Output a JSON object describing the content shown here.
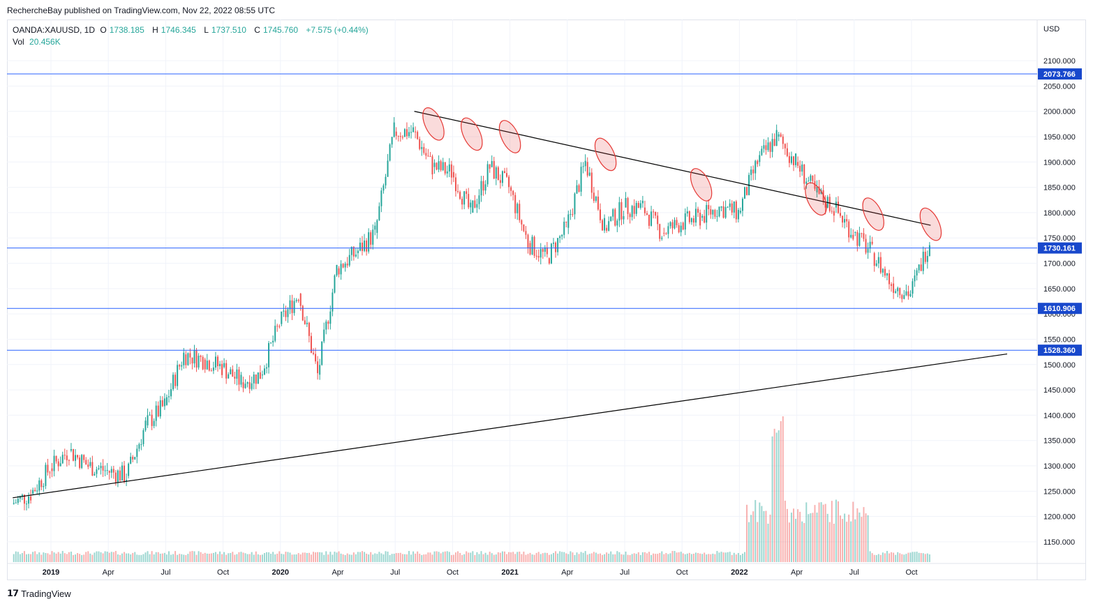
{
  "header": {
    "published": "RechercheBay published on TradingView.com, Nov 22, 2022 08:55 UTC"
  },
  "legend": {
    "symbol": "OANDA:XAUUSD, 1D",
    "open_label": "O",
    "open": "1738.185",
    "high_label": "H",
    "high": "1746.345",
    "low_label": "L",
    "low": "1737.510",
    "close_label": "C",
    "close": "1745.760",
    "change": "+7.575 (+0.44%)",
    "vol_label": "Vol",
    "vol": "20.456K"
  },
  "footer": {
    "brand": "TradingView",
    "logo": "tradingview-logo"
  },
  "colors": {
    "up": "#26a69a",
    "down": "#ef5350",
    "hline": "#2962ff",
    "tag": "#1848cc",
    "trend": "#000000",
    "ellipse": "#e53935"
  },
  "chart_data": {
    "type": "candlestick",
    "symbol": "OANDA:XAUUSD",
    "interval": "1D",
    "currency": "USD",
    "y_ticks": [
      1150,
      1200,
      1250,
      1300,
      1350,
      1400,
      1450,
      1500,
      1550,
      1600,
      1650,
      1700,
      1750,
      1800,
      1850,
      1900,
      1950,
      2000,
      2050,
      2100
    ],
    "y_tick_labels": [
      "1150.000",
      "1200.000",
      "1250.000",
      "1300.000",
      "1350.000",
      "1400.000",
      "1450.000",
      "1500.000",
      "1550.000",
      "1600.000",
      "1650.000",
      "1700.000",
      "1750.000",
      "1800.000",
      "1850.000",
      "1900.000",
      "1950.000",
      "2000.000",
      "2050.000",
      "2100.000"
    ],
    "x_ticks": [
      "2019",
      "Apr",
      "Jul",
      "Oct",
      "2020",
      "Apr",
      "Jul",
      "Oct",
      "2021",
      "Apr",
      "Jul",
      "Oct",
      "2022",
      "Apr",
      "Jul",
      "Oct"
    ],
    "x_tick_dates": [
      "2019-01",
      "2019-04",
      "2019-07",
      "2019-10",
      "2020-01",
      "2020-04",
      "2020-07",
      "2020-10",
      "2021-01",
      "2021-04",
      "2021-07",
      "2021-10",
      "2022-01",
      "2022-04",
      "2022-07",
      "2022-10"
    ],
    "horizontal_levels": [
      2073.766,
      1730.161,
      1610.906,
      1528.36
    ],
    "level_labels": [
      "2073.766",
      "1730.161",
      "1610.906",
      "1528.360"
    ],
    "trendlines": [
      {
        "from": [
          "2020-08",
          2000
        ],
        "to": [
          "2022-11",
          1775
        ]
      },
      {
        "from": [
          "2018-11",
          1237
        ],
        "to": [
          "2023-03",
          1521
        ]
      }
    ],
    "highlight_touches": [
      [
        "2020-09",
        1975
      ],
      [
        "2020-11",
        1955
      ],
      [
        "2021-01",
        1950
      ],
      [
        "2021-06",
        1915
      ],
      [
        "2021-11",
        1855
      ],
      [
        "2022-05",
        1827
      ],
      [
        "2022-08",
        1797
      ],
      [
        "2022-11",
        1777
      ]
    ],
    "closes": [
      [
        "2018-11",
        1225
      ],
      [
        "2018-12",
        1245
      ],
      [
        "2019-01",
        1295
      ],
      [
        "2019-02",
        1330
      ],
      [
        "2019-03",
        1300
      ],
      [
        "2019-04",
        1290
      ],
      [
        "2019-05",
        1280
      ],
      [
        "2019-06",
        1380
      ],
      [
        "2019-07",
        1420
      ],
      [
        "2019-08",
        1520
      ],
      [
        "2019-09",
        1510
      ],
      [
        "2019-10",
        1495
      ],
      [
        "2019-11",
        1465
      ],
      [
        "2019-12",
        1480
      ],
      [
        "2020-01",
        1580
      ],
      [
        "2020-02",
        1640
      ],
      [
        "2020-03",
        1480
      ],
      [
        "2020-04",
        1690
      ],
      [
        "2020-05",
        1720
      ],
      [
        "2020-06",
        1760
      ],
      [
        "2020-07",
        1960
      ],
      [
        "2020-08",
        1960
      ],
      [
        "2020-09",
        1890
      ],
      [
        "2020-10",
        1880
      ],
      [
        "2020-11",
        1800
      ],
      [
        "2020-12",
        1890
      ],
      [
        "2021-01",
        1850
      ],
      [
        "2021-02",
        1740
      ],
      [
        "2021-03",
        1710
      ],
      [
        "2021-04",
        1770
      ],
      [
        "2021-05",
        1900
      ],
      [
        "2021-06",
        1770
      ],
      [
        "2021-07",
        1810
      ],
      [
        "2021-08",
        1810
      ],
      [
        "2021-09",
        1760
      ],
      [
        "2021-10",
        1780
      ],
      [
        "2021-11",
        1790
      ],
      [
        "2021-12",
        1810
      ],
      [
        "2022-01",
        1800
      ],
      [
        "2022-02",
        1900
      ],
      [
        "2022-03",
        1950
      ],
      [
        "2022-04",
        1900
      ],
      [
        "2022-05",
        1840
      ],
      [
        "2022-06",
        1810
      ],
      [
        "2022-07",
        1760
      ],
      [
        "2022-08",
        1720
      ],
      [
        "2022-09",
        1660
      ],
      [
        "2022-10",
        1640
      ],
      [
        "2022-11",
        1746
      ]
    ],
    "volume": {
      "last": "20.456K",
      "spike_date": "2022-03"
    }
  }
}
